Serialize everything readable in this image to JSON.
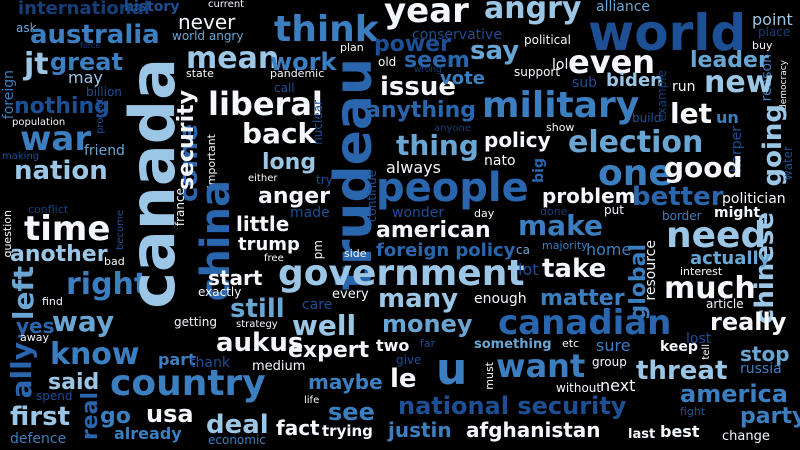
{
  "words": {
    "canada": "canada",
    "china": "china",
    "trudeau": "trudeau",
    "country": "country",
    "world": "world",
    "military": "military",
    "government": "government",
    "people": "people",
    "canadian": "canadian",
    "u": "u",
    "want": "want",
    "need": "need",
    "liberal": "liberal",
    "think": "think",
    "time": "time",
    "war": "war",
    "year": "year",
    "angry": "angry",
    "even": "even",
    "one": "one",
    "election": "election",
    "good": "good",
    "going": "going",
    "much": "much",
    "national_security": "national security",
    "many": "many",
    "make": "make",
    "take": "take",
    "mean": "mean",
    "back": "back",
    "say": "say",
    "issue": "issue",
    "nation": "nation",
    "right": "right",
    "way": "way",
    "know": "know",
    "well": "well",
    "money": "money",
    "deal": "deal",
    "see": "see",
    "threat": "threat",
    "america": "america",
    "party": "party",
    "stop": "stop",
    "really": "really",
    "first": "first",
    "said": "said",
    "usa": "usa",
    "expert": "expert",
    "aukus": "aukus",
    "still": "still",
    "start": "start",
    "thing": "thing",
    "new": "new",
    "leader": "leader",
    "australia": "australia",
    "policy": "policy",
    "american": "american",
    "afghanistan": "afghanistan",
    "justin": "justin",
    "maybe": "maybe",
    "le": "le",
    "let": "let",
    "left": "left",
    "great": "great",
    "nothing": "nothing",
    "security": "security",
    "power": "power",
    "work": "work",
    "seem": "seem",
    "vote": "vote",
    "biden": "biden",
    "anything": "anything",
    "always": "always",
    "problem": "problem",
    "better": "better",
    "actually": "actually",
    "global": "global",
    "chinese": "chinese",
    "long": "long",
    "anger": "anger",
    "trump": "trump",
    "little": "little",
    "come": "come",
    "another": "another",
    "jt": "jt",
    "international": "international",
    "foreign_policy": "foreign policy",
    "matter": "matter",
    "yes": "yes",
    "ally": "ally",
    "real": "real",
    "go": "go",
    "already": "already",
    "fact": "fact",
    "trying": "trying",
    "two": "two",
    "something": "something",
    "next": "next",
    "best": "best",
    "last": "last",
    "change": "change",
    "fight": "fight",
    "defence": "defence",
    "spend": "spend",
    "economic": "economic",
    "life": "life",
    "must": "must",
    "without": "without",
    "group": "group",
    "sure": "sure",
    "keep": "keep",
    "lost": "lost",
    "tell": "tell",
    "russia": "russia",
    "put": "put",
    "done": "done",
    "might": "might",
    "border": "border",
    "politician": "politician",
    "interest": "interest",
    "article": "article",
    "resource": "resource",
    "home": "home",
    "majority": "majority",
    "ca": "ca",
    "day": "day",
    "wonder": "wonder",
    "side": "side",
    "every": "every",
    "enough": "enough",
    "care": "care",
    "lot": "lot",
    "pm": "pm",
    "free": "free",
    "exactly": "exactly",
    "getting": "getting",
    "strategy": "strategy",
    "part": "part",
    "thank": "thank",
    "medium": "medium",
    "give": "give",
    "far": "far",
    "etc": "etc",
    "made": "made",
    "try": "try",
    "continue": "continue",
    "either": "either",
    "nuclear": "nuclear",
    "call": "call",
    "pandemic": "pandemic",
    "state": "state",
    "billion": "billion",
    "may": "may",
    "protect": "protect",
    "friend": "friend",
    "population": "population",
    "making": "making",
    "conflict": "conflict",
    "become": "become",
    "bad": "bad",
    "question": "question",
    "find": "find",
    "away": "away",
    "france": "france",
    "important": "important",
    "ask": "ask",
    "force": "force",
    "foreign": "foreign",
    "history": "history",
    "current": "current",
    "world_angry": "world angry",
    "never": "never",
    "plan": "plan",
    "old": "old",
    "wrong": "wrong",
    "conservative": "conservative",
    "alliance": "alliance",
    "political": "political",
    "point": "point",
    "place": "place",
    "buy": "buy",
    "reason": "reason",
    "democracy": "democracy",
    "example": "example",
    "support": "support",
    "lol": "lol",
    "sub": "sub",
    "run": "run",
    "build": "build",
    "un": "un",
    "harper": "harper",
    "water": "water",
    "show": "show",
    "anyone": "anyone",
    "nato": "nato",
    "big": "big"
  }
}
